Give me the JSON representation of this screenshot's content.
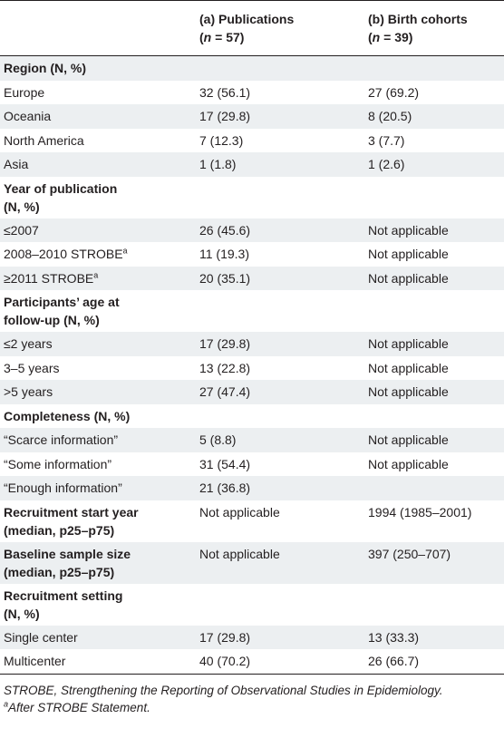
{
  "header": {
    "col2_line1": "(a) Publications",
    "col2_line2_n": "n",
    "col2_line2_rest": " = 57)",
    "col3_line1": "(b) Birth cohorts",
    "col3_line2_n": "n",
    "col3_line2_rest": " = 39)"
  },
  "rows": [
    {
      "type": "cat",
      "shade": true,
      "c1": "Region (N, %)",
      "c2": "",
      "c3": ""
    },
    {
      "type": "item",
      "shade": false,
      "c1": "Europe",
      "c2": "32 (56.1)",
      "c3": "27 (69.2)"
    },
    {
      "type": "item",
      "shade": true,
      "c1": "Oceania",
      "c2": "17 (29.8)",
      "c3": "8 (20.5)"
    },
    {
      "type": "item",
      "shade": false,
      "c1": "North America",
      "c2": "7 (12.3)",
      "c3": "3 (7.7)"
    },
    {
      "type": "item",
      "shade": true,
      "c1": "Asia",
      "c2": "1 (1.8)",
      "c3": "1 (2.6)"
    },
    {
      "type": "cat2",
      "shade": false,
      "c1a": "Year of publication",
      "c1b": "(N, %)",
      "c2": "",
      "c3": ""
    },
    {
      "type": "item",
      "shade": true,
      "c1": "≤2007",
      "c2": "26 (45.6)",
      "c3": "Not applicable"
    },
    {
      "type": "itemsup",
      "shade": false,
      "c1": "2008–2010 STROBE",
      "sup": "a",
      "c2": "11 (19.3)",
      "c3": "Not applicable"
    },
    {
      "type": "itemsup",
      "shade": true,
      "c1": "≥2011 STROBE",
      "sup": "a",
      "c2": "20 (35.1)",
      "c3": "Not applicable"
    },
    {
      "type": "cat2",
      "shade": false,
      "c1a": "Participants’ age at",
      "c1b": "follow-up (N, %)",
      "c2": "",
      "c3": ""
    },
    {
      "type": "item",
      "shade": true,
      "c1": "≤2 years",
      "c2": "17 (29.8)",
      "c3": "Not applicable"
    },
    {
      "type": "item",
      "shade": false,
      "c1": "3–5 years",
      "c2": "13 (22.8)",
      "c3": "Not applicable"
    },
    {
      "type": "item",
      "shade": true,
      "c1": ">5 years",
      "c2": "27 (47.4)",
      "c3": "Not applicable"
    },
    {
      "type": "cat",
      "shade": false,
      "c1": "Completeness (N, %)",
      "c2": "",
      "c3": ""
    },
    {
      "type": "item",
      "shade": true,
      "c1": "“Scarce information”",
      "c2": "5 (8.8)",
      "c3": "Not applicable"
    },
    {
      "type": "item",
      "shade": false,
      "c1": "“Some information”",
      "c2": "31 (54.4)",
      "c3": "Not applicable"
    },
    {
      "type": "item",
      "shade": true,
      "c1": "“Enough information”",
      "c2": "21 (36.8)",
      "c3": ""
    },
    {
      "type": "cat2",
      "shade": false,
      "c1a": "Recruitment start year",
      "c1b": "(median, p25–p75)",
      "c2": "Not applicable",
      "c3": "1994 (1985–2001)"
    },
    {
      "type": "cat2",
      "shade": true,
      "c1a": "Baseline sample size",
      "c1b": "(median, p25–p75)",
      "c2": "Not applicable",
      "c3": "397 (250–707)"
    },
    {
      "type": "cat2",
      "shade": false,
      "c1a": "Recruitment setting",
      "c1b": "(N, %)",
      "c2": "",
      "c3": ""
    },
    {
      "type": "item",
      "shade": true,
      "c1": "Single center",
      "c2": "17 (29.8)",
      "c3": "13 (33.3)"
    },
    {
      "type": "item",
      "shade": false,
      "c1": "Multicenter",
      "c2": "40 (70.2)",
      "c3": "26 (66.7)"
    }
  ],
  "footnotes": {
    "line1": "STROBE, Strengthening the Reporting of Observational Studies in Epidemiology.",
    "line2_sup": "a",
    "line2_text": "After STROBE Statement."
  }
}
